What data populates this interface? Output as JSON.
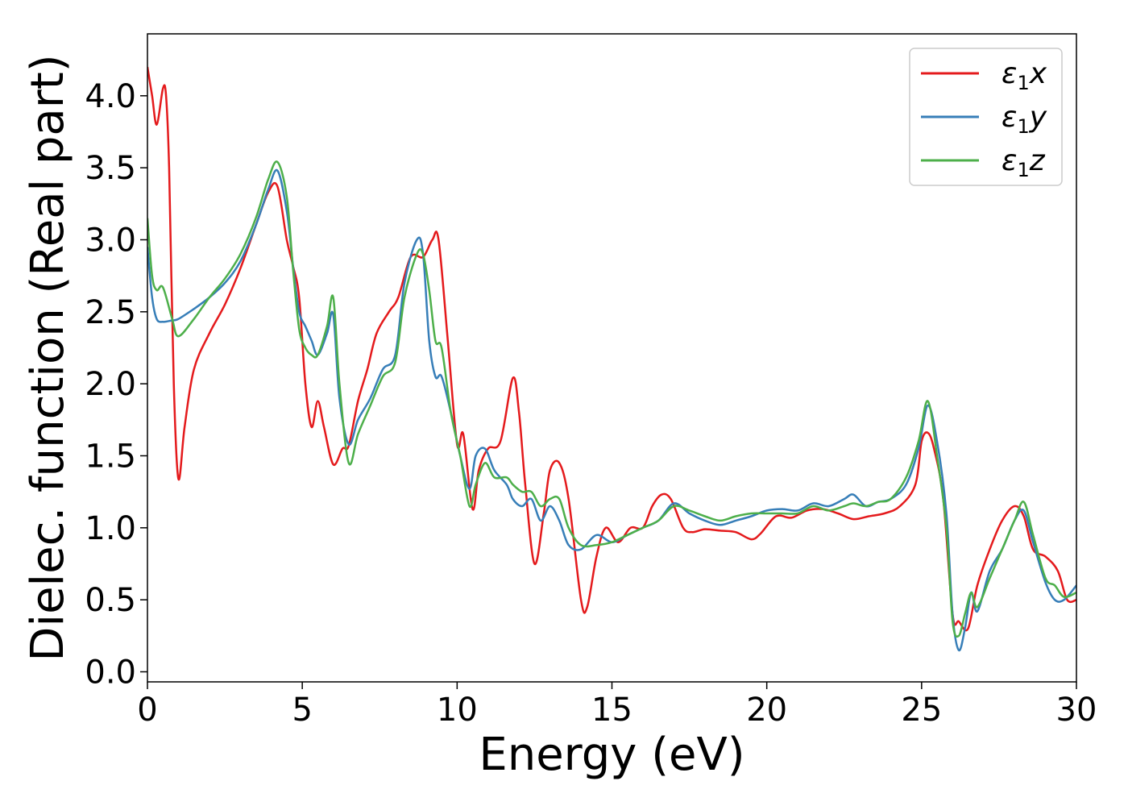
{
  "chart_data": {
    "type": "line",
    "xlabel": "Energy (eV)",
    "ylabel": "Dielec. function (Real part)",
    "xlim": [
      0,
      30
    ],
    "ylim": [
      -0.07,
      4.43
    ],
    "xticks": [
      0,
      5,
      10,
      15,
      20,
      25,
      30
    ],
    "xtick_labels": [
      "0",
      "5",
      "10",
      "15",
      "20",
      "25",
      "30"
    ],
    "yticks": [
      0.0,
      0.5,
      1.0,
      1.5,
      2.0,
      2.5,
      3.0,
      3.5,
      4.0
    ],
    "ytick_labels": [
      "0.0",
      "0.5",
      "1.0",
      "1.5",
      "2.0",
      "2.5",
      "3.0",
      "3.5",
      "4.0"
    ],
    "grid": false,
    "legend_position": "top-right",
    "series": [
      {
        "name": "ε1x",
        "legend_base": "ε",
        "legend_sub": "1",
        "legend_suffix": "x",
        "color": "#e41a1c",
        "x": [
          0,
          0.15,
          0.3,
          0.5,
          0.6,
          0.7,
          0.85,
          1.0,
          1.2,
          1.5,
          2,
          2.5,
          3,
          3.5,
          3.9,
          4.2,
          4.5,
          4.7,
          4.9,
          5.1,
          5.3,
          5.5,
          5.7,
          6.0,
          6.3,
          6.5,
          6.8,
          7.1,
          7.4,
          7.8,
          8.1,
          8.5,
          8.9,
          9.2,
          9.4,
          9.7,
          10.0,
          10.2,
          10.5,
          10.7,
          11,
          11.4,
          11.8,
          12.0,
          12.2,
          12.5,
          12.8,
          13.0,
          13.3,
          13.6,
          14.0,
          14.2,
          14.5,
          14.8,
          15.2,
          15.6,
          16.0,
          16.3,
          16.6,
          16.9,
          17.3,
          17.6,
          18.0,
          18.5,
          19.0,
          19.5,
          19.8,
          20.3,
          20.8,
          21.3,
          21.8,
          22.3,
          22.8,
          23.3,
          23.8,
          24.3,
          24.8,
          25.0,
          25.2,
          25.4,
          25.7,
          26.0,
          26.2,
          26.5,
          26.8,
          27.2,
          27.6,
          28.0,
          28.3,
          28.6,
          29.0,
          29.4,
          29.7,
          30
        ],
        "y": [
          4.2,
          4.0,
          3.8,
          4.05,
          4.0,
          3.5,
          2.0,
          1.34,
          1.7,
          2.1,
          2.35,
          2.55,
          2.8,
          3.1,
          3.33,
          3.37,
          3.0,
          2.82,
          2.6,
          2.0,
          1.7,
          1.88,
          1.7,
          1.44,
          1.55,
          1.57,
          1.88,
          2.1,
          2.35,
          2.5,
          2.6,
          2.88,
          2.88,
          3.0,
          3.0,
          2.3,
          1.58,
          1.65,
          1.13,
          1.4,
          1.55,
          1.6,
          2.04,
          1.8,
          1.3,
          0.75,
          1.1,
          1.4,
          1.45,
          1.2,
          0.5,
          0.45,
          0.8,
          1.0,
          0.9,
          1.0,
          1.0,
          1.15,
          1.23,
          1.2,
          1.0,
          0.97,
          0.99,
          0.98,
          0.97,
          0.92,
          0.96,
          1.08,
          1.07,
          1.12,
          1.13,
          1.1,
          1.06,
          1.08,
          1.1,
          1.15,
          1.3,
          1.6,
          1.66,
          1.55,
          1.2,
          0.4,
          0.35,
          0.3,
          0.6,
          0.85,
          1.05,
          1.15,
          1.08,
          0.85,
          0.8,
          0.7,
          0.5,
          0.5
        ]
      },
      {
        "name": "ε1y",
        "legend_base": "ε",
        "legend_sub": "1",
        "legend_suffix": "y",
        "color": "#377eb8",
        "x": [
          0,
          0.15,
          0.3,
          0.5,
          0.8,
          1.0,
          1.5,
          2,
          2.5,
          3,
          3.5,
          3.9,
          4.2,
          4.5,
          4.7,
          4.9,
          5.1,
          5.3,
          5.5,
          5.8,
          6.0,
          6.2,
          6.5,
          6.8,
          7.2,
          7.6,
          8.0,
          8.3,
          8.7,
          8.9,
          9.1,
          9.3,
          9.5,
          9.8,
          10.1,
          10.4,
          10.6,
          10.9,
          11.2,
          11.6,
          11.8,
          12.1,
          12.4,
          12.7,
          13.0,
          13.3,
          13.6,
          14.0,
          14.5,
          15.0,
          15.5,
          16.0,
          16.5,
          17.0,
          17.5,
          18.0,
          18.5,
          19.0,
          19.5,
          20.0,
          20.5,
          21.0,
          21.5,
          22.0,
          22.5,
          22.8,
          23.2,
          23.6,
          24.0,
          24.5,
          24.9,
          25.2,
          25.5,
          25.8,
          26.0,
          26.2,
          26.4,
          26.6,
          26.8,
          27.2,
          27.6,
          28.0,
          28.3,
          28.6,
          29.0,
          29.3,
          29.6,
          30
        ],
        "y": [
          2.95,
          2.6,
          2.45,
          2.43,
          2.44,
          2.45,
          2.52,
          2.6,
          2.7,
          2.85,
          3.1,
          3.35,
          3.48,
          3.2,
          2.82,
          2.5,
          2.4,
          2.3,
          2.2,
          2.35,
          2.48,
          1.9,
          1.58,
          1.75,
          1.9,
          2.1,
          2.2,
          2.7,
          3.0,
          2.9,
          2.3,
          2.05,
          2.05,
          1.8,
          1.5,
          1.27,
          1.5,
          1.55,
          1.4,
          1.3,
          1.2,
          1.15,
          1.2,
          1.05,
          1.15,
          1.05,
          0.88,
          0.85,
          0.95,
          0.9,
          0.95,
          1.0,
          1.05,
          1.17,
          1.1,
          1.05,
          1.02,
          1.05,
          1.08,
          1.12,
          1.13,
          1.12,
          1.17,
          1.15,
          1.2,
          1.23,
          1.15,
          1.18,
          1.2,
          1.3,
          1.55,
          1.85,
          1.6,
          1.1,
          0.4,
          0.15,
          0.3,
          0.55,
          0.42,
          0.7,
          0.85,
          1.05,
          1.12,
          0.9,
          0.62,
          0.5,
          0.5,
          0.6
        ]
      },
      {
        "name": "ε1z",
        "legend_base": "ε",
        "legend_sub": "1",
        "legend_suffix": "z",
        "color": "#4daf4a",
        "x": [
          0,
          0.15,
          0.3,
          0.5,
          0.8,
          1.0,
          1.5,
          2,
          2.5,
          3,
          3.5,
          3.9,
          4.2,
          4.5,
          4.7,
          4.9,
          5.1,
          5.3,
          5.5,
          5.8,
          6.0,
          6.2,
          6.5,
          6.8,
          7.2,
          7.6,
          8.0,
          8.3,
          8.7,
          8.9,
          9.1,
          9.3,
          9.5,
          9.8,
          10.1,
          10.4,
          10.6,
          10.9,
          11.2,
          11.6,
          11.8,
          12.1,
          12.4,
          12.7,
          13.0,
          13.3,
          13.6,
          14.0,
          14.5,
          15.0,
          15.5,
          16.0,
          16.5,
          17.0,
          17.5,
          18.0,
          18.5,
          19.0,
          19.5,
          20.0,
          20.5,
          21.0,
          21.5,
          22.0,
          22.5,
          22.8,
          23.2,
          23.6,
          24.0,
          24.5,
          24.9,
          25.2,
          25.5,
          25.8,
          26.0,
          26.2,
          26.4,
          26.6,
          26.8,
          27.2,
          27.6,
          28.0,
          28.3,
          28.6,
          29.0,
          29.3,
          29.6,
          30
        ],
        "y": [
          3.15,
          2.75,
          2.65,
          2.67,
          2.45,
          2.33,
          2.45,
          2.6,
          2.73,
          2.9,
          3.15,
          3.42,
          3.54,
          3.3,
          2.8,
          2.38,
          2.25,
          2.2,
          2.2,
          2.4,
          2.6,
          2.0,
          1.45,
          1.65,
          1.85,
          2.05,
          2.15,
          2.6,
          2.9,
          2.9,
          2.65,
          2.3,
          2.25,
          1.8,
          1.5,
          1.15,
          1.3,
          1.45,
          1.35,
          1.35,
          1.3,
          1.25,
          1.25,
          1.15,
          1.2,
          1.2,
          1.0,
          0.88,
          0.88,
          0.9,
          0.95,
          1.0,
          1.05,
          1.15,
          1.12,
          1.08,
          1.05,
          1.08,
          1.1,
          1.1,
          1.1,
          1.1,
          1.15,
          1.12,
          1.15,
          1.17,
          1.15,
          1.18,
          1.2,
          1.35,
          1.6,
          1.88,
          1.5,
          1.0,
          0.35,
          0.25,
          0.4,
          0.55,
          0.45,
          0.65,
          0.85,
          1.05,
          1.18,
          0.95,
          0.65,
          0.6,
          0.52,
          0.55
        ]
      }
    ]
  }
}
